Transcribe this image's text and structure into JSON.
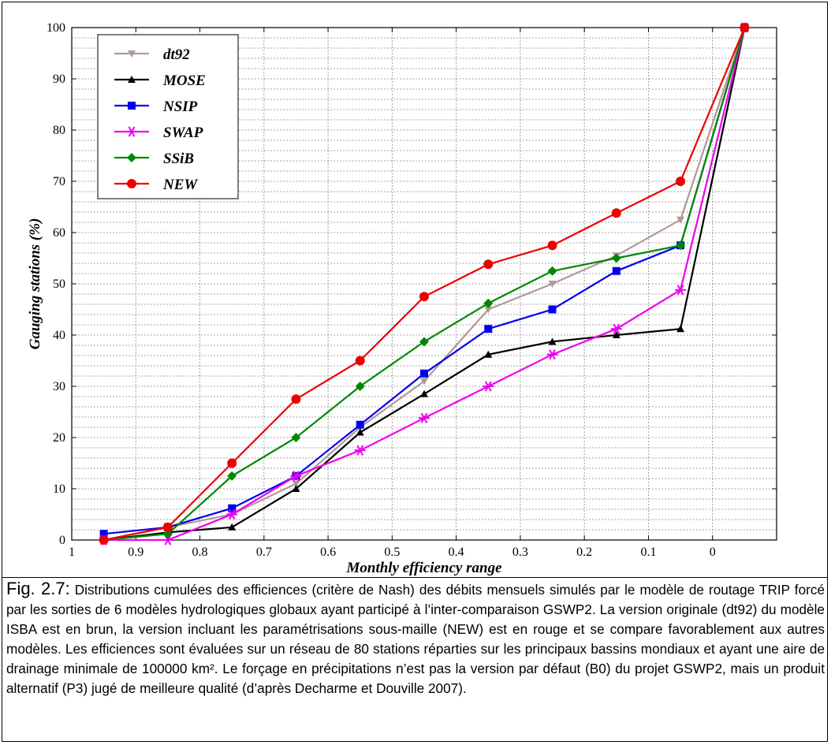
{
  "chart_data": {
    "type": "line",
    "xlabel": "Monthly efficiency range",
    "ylabel": "Gauging stations (%)",
    "xlim": [
      1,
      -0.1
    ],
    "ylim": [
      0,
      100
    ],
    "x_ticks": [
      "1",
      "0.9",
      "0.8",
      "0.7",
      "0.6",
      "0.5",
      "0.4",
      "0.3",
      "0.2",
      "0.1",
      "0"
    ],
    "y_ticks": [
      "0",
      "10",
      "20",
      "30",
      "40",
      "50",
      "60",
      "70",
      "80",
      "90",
      "100"
    ],
    "grid": true,
    "legend_position": "top-left",
    "x": [
      0.95,
      0.85,
      0.75,
      0.65,
      0.55,
      0.45,
      0.35,
      0.25,
      0.15,
      0.05,
      -0.05
    ],
    "series": [
      {
        "name": "dt92",
        "color": "#b09a95",
        "marker": "triangle-down",
        "values": [
          0,
          2.5,
          5,
          11,
          22,
          31,
          45,
          50,
          55.5,
          62.5,
          100
        ]
      },
      {
        "name": "MOSE",
        "color": "#000000",
        "marker": "triangle-up",
        "values": [
          0,
          1.5,
          2.5,
          10,
          21,
          28.5,
          36.2,
          38.7,
          40,
          41.2,
          100
        ]
      },
      {
        "name": "NSIP",
        "color": "#0000ee",
        "marker": "square",
        "values": [
          1.2,
          2.5,
          6.2,
          12.5,
          22.5,
          32.5,
          41.2,
          45,
          52.5,
          57.5,
          100
        ]
      },
      {
        "name": "SWAP",
        "color": "#ee00ee",
        "marker": "asterisk",
        "values": [
          0,
          0,
          5,
          12.5,
          17.5,
          23.8,
          30,
          36.2,
          41.2,
          48.8,
          100
        ]
      },
      {
        "name": "SSiB",
        "color": "#008800",
        "marker": "diamond",
        "values": [
          0,
          1.2,
          12.5,
          20,
          30,
          38.7,
          46.2,
          52.5,
          55,
          57.5,
          100
        ]
      },
      {
        "name": "NEW",
        "color": "#ee0000",
        "marker": "circle",
        "values": [
          0,
          2.5,
          15,
          27.5,
          35,
          47.5,
          53.8,
          57.5,
          63.8,
          70,
          100
        ]
      }
    ]
  },
  "caption": {
    "label": "Fig. 2.7:",
    "text": " Distributions cumulées des efficiences (critère de Nash) des débits mensuels simulés par le modèle de routage TRIP forcé par les sorties de 6 modèles hydrologiques globaux ayant participé à l’inter-comparaison GSWP2. La version originale (dt92) du modèle ISBA est en brun, la version incluant les paramétrisations sous-maille (NEW) est en rouge et se compare favorablement aux autres modèles. Les efficiences sont évaluées sur un réseau de 80 stations réparties sur les principaux bassins mondiaux et ayant une aire de drainage minimale de 100000 km². Le forçage en précipitations n’est pas la version par défaut (B0) du projet GSWP2, mais un produit alternatif (P3) jugé de meilleure qualité (d’après Decharme et Douville 2007)."
  }
}
